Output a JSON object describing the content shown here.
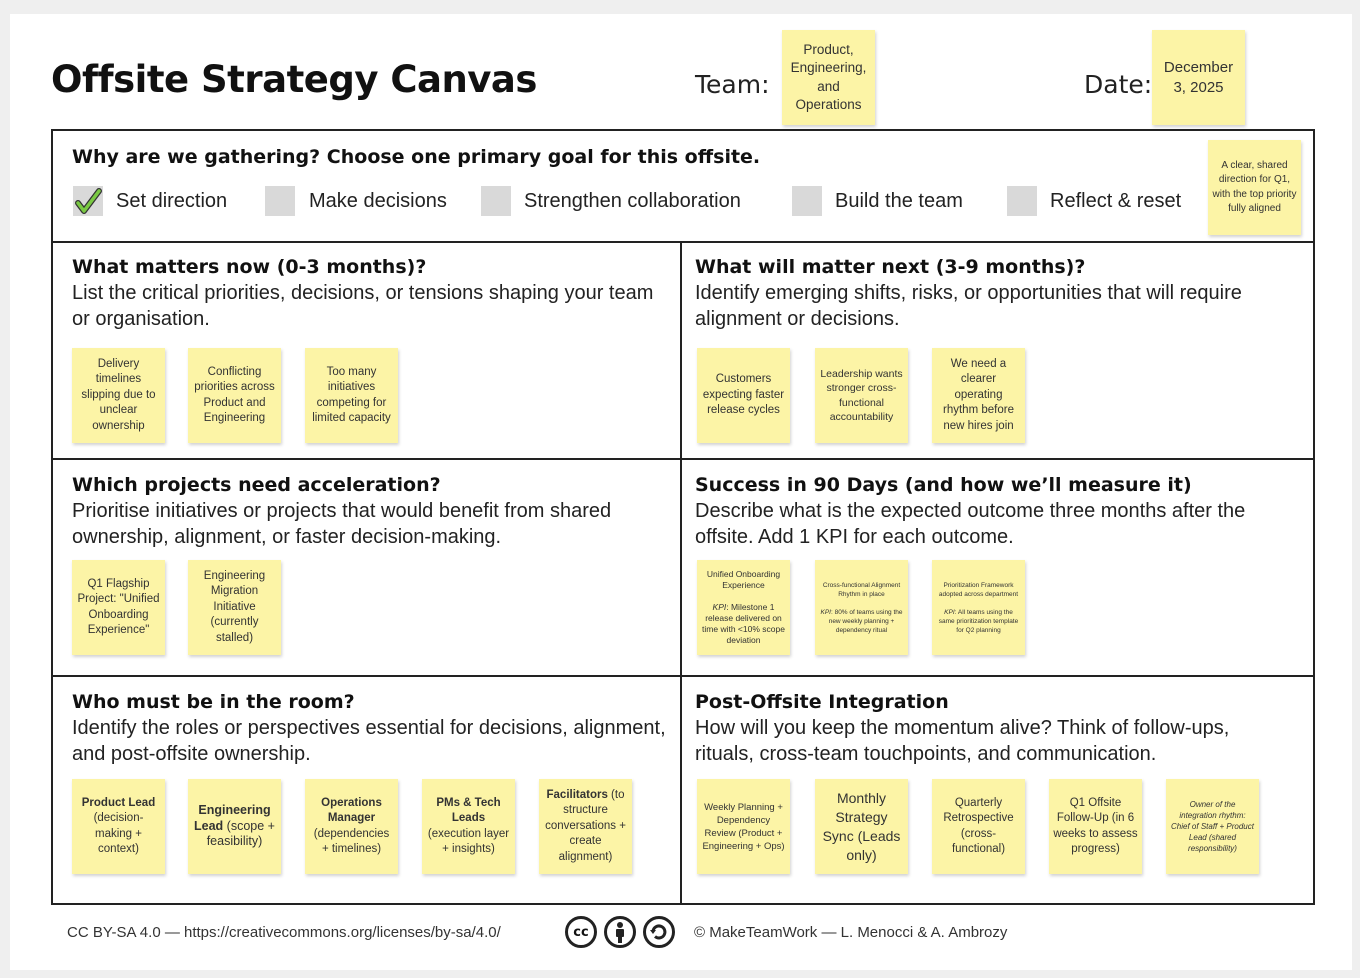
{
  "header": {
    "title": "Offsite Strategy Canvas",
    "team_label": "Team:",
    "team_value": "Product, Engineering, and Operations",
    "date_label": "Date:",
    "date_value": "December 3, 2025"
  },
  "goal": {
    "question": "Why are we gathering? Choose one primary goal for this offsite.",
    "options": [
      {
        "label": "Set direction",
        "checked": true
      },
      {
        "label": "Make decisions",
        "checked": false
      },
      {
        "label": "Strengthen collaboration",
        "checked": false
      },
      {
        "label": "Build the team",
        "checked": false
      },
      {
        "label": "Reflect & reset",
        "checked": false
      }
    ],
    "note": "A clear, shared direction for Q1, with the top priority fully aligned"
  },
  "sections": [
    {
      "title": "What matters now (0-3 months)?",
      "desc": "List the critical priorities, decisions, or tensions shaping your team or organisation.",
      "notes": [
        "Delivery timelines slipping due to unclear ownership",
        "Conflicting priorities across Product and Engineering",
        "Too many initiatives competing for limited capacity"
      ]
    },
    {
      "title": "What will matter next (3-9 months)?",
      "desc": "Identify emerging shifts, risks, or opportunities that will require alignment or decisions.",
      "notes": [
        "Customers expecting faster release cycles",
        "Leadership wants stronger cross-functional accountability",
        "We need a clearer operating rhythm before new hires join"
      ]
    },
    {
      "title": "Which projects need acceleration?",
      "desc": "Prioritise initiatives or projects that would benefit from shared ownership, alignment, or faster decision-making.",
      "notes": [
        "Q1 Flagship Project: \"Unified Onboarding Experience\"",
        "Engineering Migration Initiative (currently stalled)"
      ]
    },
    {
      "title": "Success in 90 Days (and how we’ll measure it)",
      "desc": "Describe what is the expected outcome three months after the offsite. Add 1 KPI for each outcome.",
      "notes": [
        {
          "outcome": "Unified Onboarding Experience",
          "kpi_label": "KPI",
          "kpi": ": Milestone 1 release delivered on time with <10% scope deviation"
        },
        {
          "outcome": "Cross-functional Alignment Rhythm in place",
          "kpi_label": "KPI",
          "kpi": ": 80% of teams using the new weekly planning + dependency ritual"
        },
        {
          "outcome": "Prioritization Framework adopted across department",
          "kpi_label": "KPI",
          "kpi": ": All teams using the same prioritization template for Q2 planning"
        }
      ]
    },
    {
      "title": "Who must be in the room?",
      "desc": "Identify the roles or perspectives essential for decisions, alignment, and post-offsite ownership.",
      "notes": [
        {
          "bold": "Product Lead",
          "rest": " (decision-making + context)"
        },
        {
          "bold": "Engineering Lead",
          "rest": " (scope + feasibility)"
        },
        {
          "bold": "Operations Manager",
          "rest": " (dependencies + timelines)"
        },
        {
          "bold": "PMs & Tech Leads",
          "rest": " (execution layer + insights)"
        },
        {
          "bold": "Facilitators",
          "rest": " (to structure conversations + create alignment)"
        }
      ]
    },
    {
      "title": "Post-Offsite Integration",
      "desc": "How will you keep the momentum alive? Think of follow-ups, rituals, cross-team touchpoints, and communication.",
      "notes": [
        "Weekly Planning + Dependency Review (Product + Engineering + Ops)",
        "Monthly Strategy Sync (Leads only)",
        "Quarterly Retrospective (cross-functional)",
        "Q1 Offsite Follow-Up (in 6 weeks to assess progress)",
        "Owner of the integration rhythm: Chief of Staff + Product Lead (shared responsibility)"
      ]
    }
  ],
  "footer": {
    "license": "CC BY-SA 4.0 — https://creativecommons.org/licenses/by-sa/4.0/",
    "cc": "cc",
    "credit": "© MakeTeamWork — L. Menocci & A. Ambrozy"
  },
  "colors": {
    "sticky": "#fcf4a6",
    "check": "#7ac943"
  }
}
